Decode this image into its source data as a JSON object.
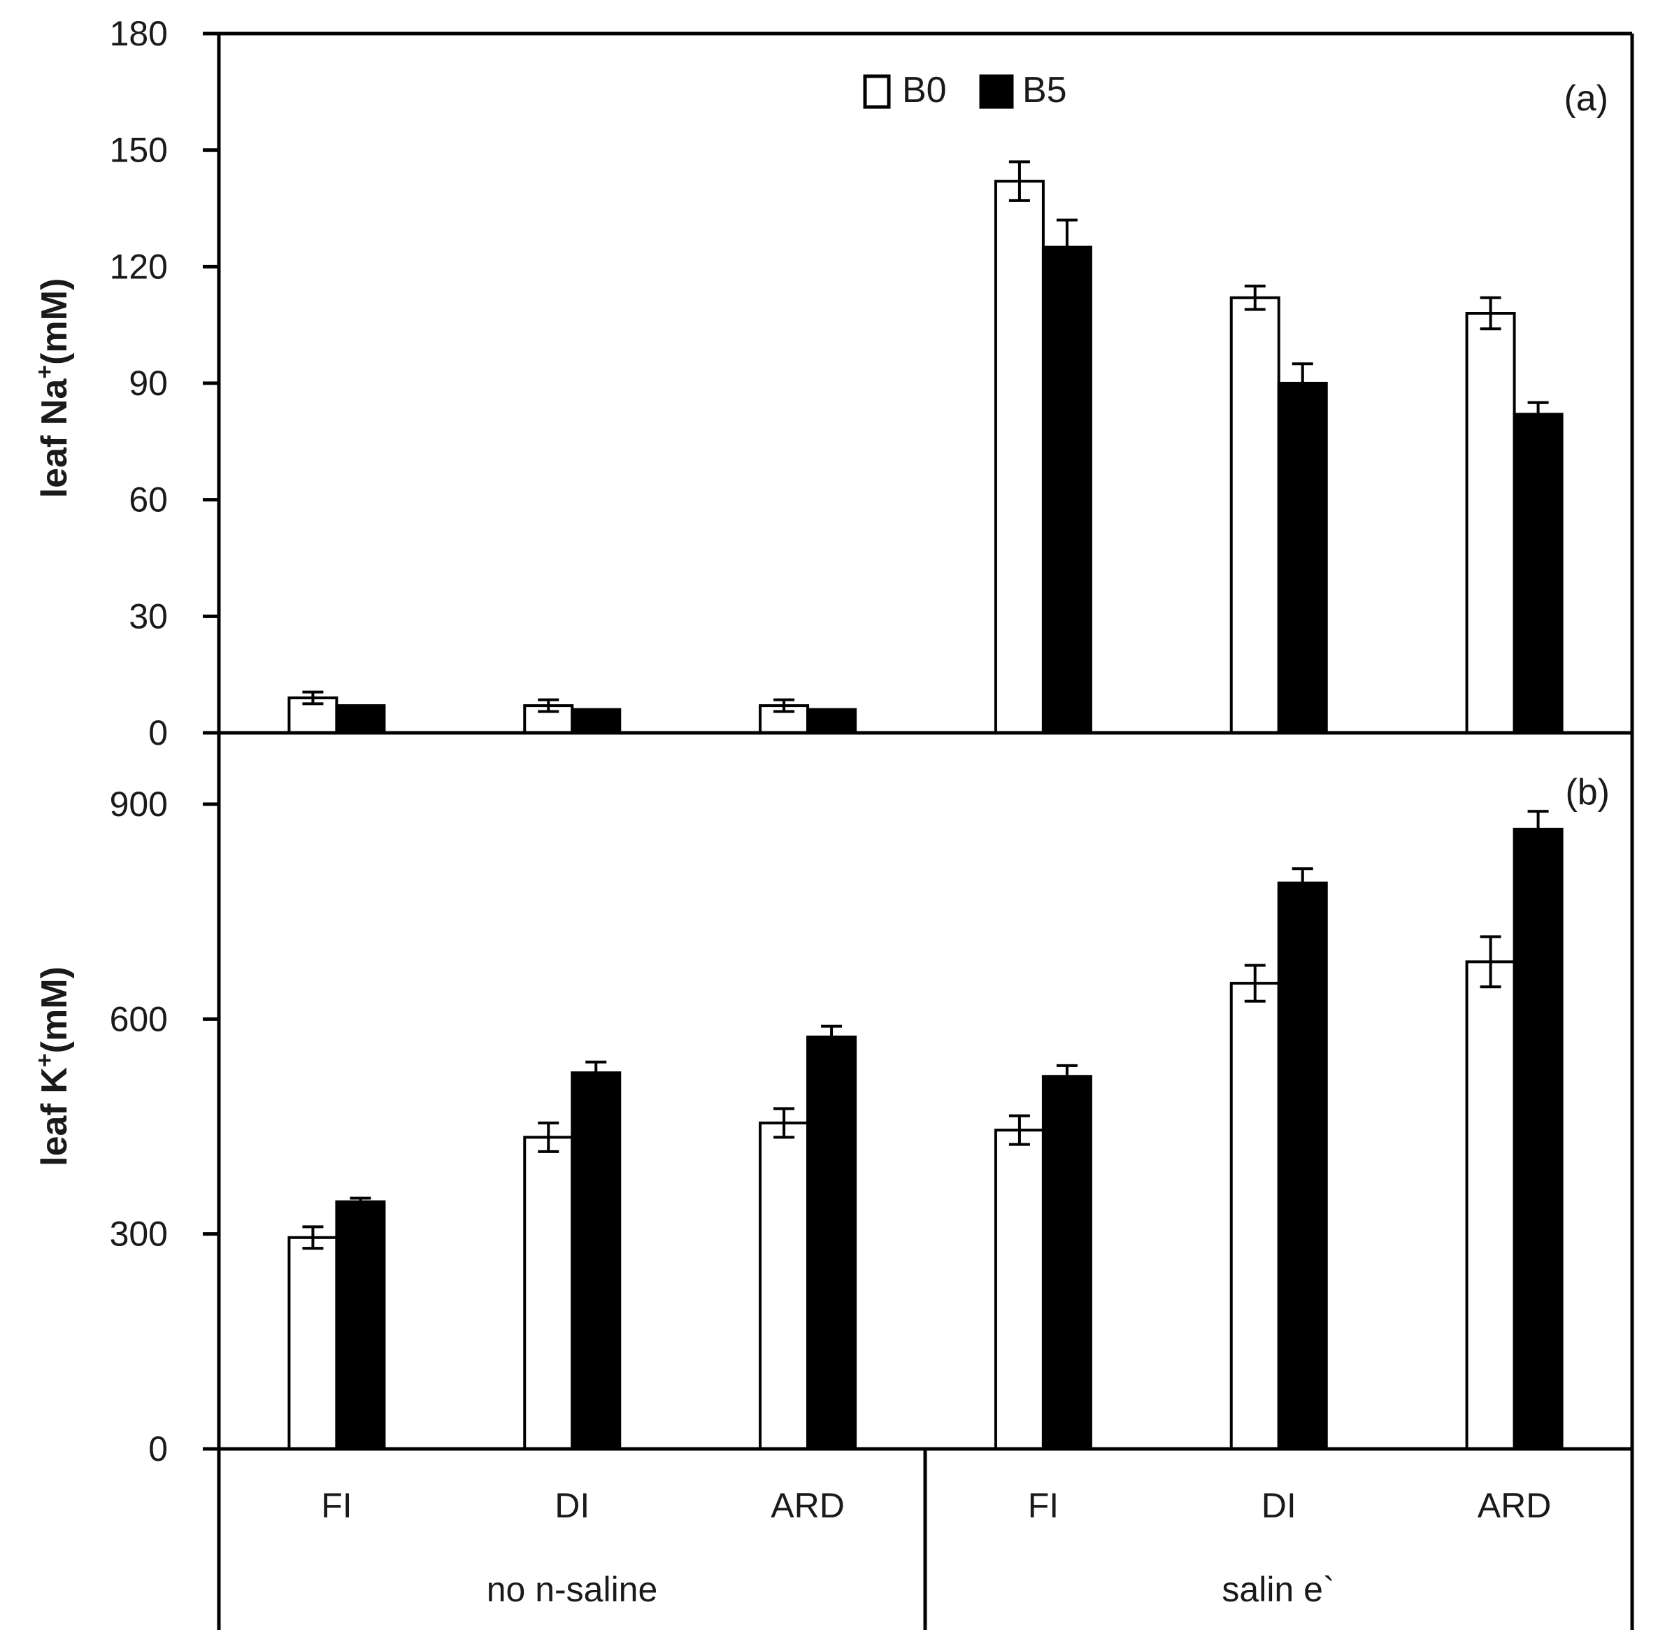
{
  "chart_data": [
    {
      "type": "bar",
      "panel_label": "(a)",
      "ylabel_main": "leaf Na",
      "ylabel_sup": "+",
      "ylabel_rest": "(mM)",
      "ylim": [
        0,
        180
      ],
      "yticks": [
        0,
        30,
        60,
        90,
        120,
        150,
        180
      ],
      "legend": {
        "placement": "top-center",
        "entries": [
          "B0",
          "B5"
        ]
      },
      "categories": [
        "FI",
        "DI",
        "ARD",
        "FI",
        "DI",
        "ARD"
      ],
      "series": [
        {
          "name": "B0",
          "values": [
            9,
            7,
            7,
            142,
            112,
            108
          ],
          "errors": [
            1.5,
            1.5,
            1.5,
            5,
            3,
            4
          ]
        },
        {
          "name": "B5",
          "values": [
            7,
            6,
            6,
            125,
            90,
            82
          ],
          "errors": [
            0,
            0,
            0,
            7,
            5,
            3
          ]
        }
      ]
    },
    {
      "type": "bar",
      "panel_label": "(b)",
      "ylabel_main": "leaf K",
      "ylabel_sup": "+",
      "ylabel_rest": "(mM)",
      "ylim": [
        0,
        1000
      ],
      "yticks": [
        0,
        300,
        600,
        900
      ],
      "categories": [
        "FI",
        "DI",
        "ARD",
        "FI",
        "DI",
        "ARD"
      ],
      "groups": [
        "non-saline",
        "saline`"
      ],
      "group_tick_labels": [
        "no n-saline",
        "salin e`"
      ],
      "series": [
        {
          "name": "B0",
          "values": [
            295,
            435,
            455,
            445,
            650,
            680
          ],
          "errors": [
            15,
            20,
            20,
            20,
            25,
            35
          ]
        },
        {
          "name": "B5",
          "values": [
            345,
            525,
            575,
            520,
            790,
            865
          ],
          "errors": [
            5,
            15,
            15,
            15,
            20,
            25
          ]
        }
      ]
    }
  ],
  "x_axis": {
    "category_labels": [
      "FI",
      "DI",
      "ARD",
      "FI",
      "DI",
      "ARD"
    ],
    "group_labels": [
      "no n-saline",
      "salin e`"
    ]
  }
}
